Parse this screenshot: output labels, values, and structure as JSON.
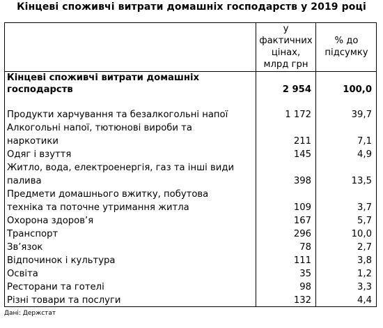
{
  "title": "Кінцеві споживчі витрати домашніх господарств у 2019 році",
  "header": {
    "col_value_lines": [
      "у",
      "фактичних",
      "цінах,",
      "млрд грн"
    ],
    "col_percent_lines": [
      "% до",
      "підсумку"
    ]
  },
  "total": {
    "label_lines": [
      "Кінцеві споживчі витрати домашніх",
      "господарств"
    ],
    "value": "2 954",
    "percent": "100,0"
  },
  "rows": [
    {
      "label_lines": [
        "Продукти харчування та безалкогольні напої"
      ],
      "value": "1 172",
      "percent": "39,7"
    },
    {
      "label_lines": [
        "Алкогольні напої, тютюнові вироби та",
        "наркотики"
      ],
      "value": "211",
      "percent": "7,1"
    },
    {
      "label_lines": [
        "Одяг і взуття"
      ],
      "value": "145",
      "percent": "4,9"
    },
    {
      "label_lines": [
        "Житло, вода, електроенергія, газ та інші види",
        "палива"
      ],
      "value": "398",
      "percent": "13,5"
    },
    {
      "label_lines": [
        "Предмети домашнього вжитку, побутова",
        "техніка та поточне утримання житла"
      ],
      "value": "109",
      "percent": "3,7"
    },
    {
      "label_lines": [
        "Охорона здоров’я"
      ],
      "value": "167",
      "percent": "5,7"
    },
    {
      "label_lines": [
        "Транспорт"
      ],
      "value": "296",
      "percent": "10,0"
    },
    {
      "label_lines": [
        "Зв’язок"
      ],
      "value": "78",
      "percent": "2,7"
    },
    {
      "label_lines": [
        "Відпочинок і культура"
      ],
      "value": "111",
      "percent": "3,8"
    },
    {
      "label_lines": [
        "Освіта"
      ],
      "value": "35",
      "percent": "1,2"
    },
    {
      "label_lines": [
        "Ресторани та готелі"
      ],
      "value": "98",
      "percent": "3,3"
    },
    {
      "label_lines": [
        "Різні товари та послуги"
      ],
      "value": "132",
      "percent": "4,4"
    }
  ],
  "source": "Дані: Держстат"
}
